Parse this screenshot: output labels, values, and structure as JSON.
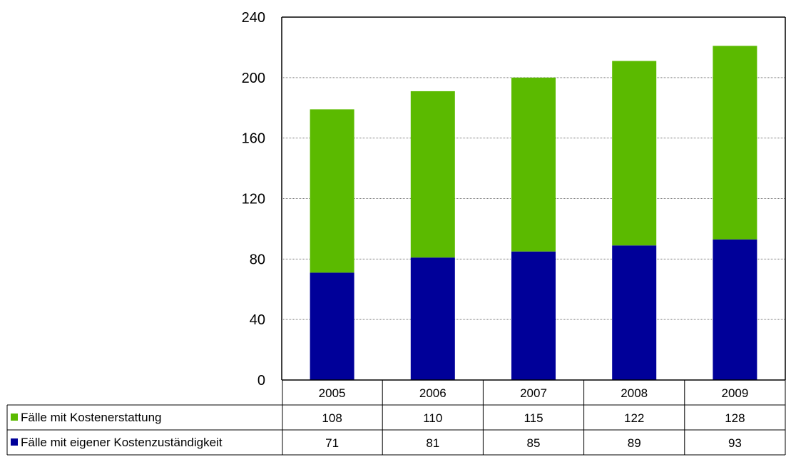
{
  "chart_data": {
    "type": "bar",
    "stacked": true,
    "categories": [
      "2005",
      "2006",
      "2007",
      "2008",
      "2009"
    ],
    "series": [
      {
        "name": "Fälle mit eigener Kostenzuständigkeit",
        "values": [
          71,
          81,
          85,
          89,
          93
        ],
        "color": "#000099"
      },
      {
        "name": "Fälle mit Kostenerstattung",
        "values": [
          108,
          110,
          115,
          122,
          128
        ],
        "color": "#5BBA00"
      }
    ],
    "table_rows": [
      {
        "name": "Fälle mit Kostenerstattung",
        "values": [
          "108",
          "110",
          "115",
          "122",
          "128"
        ],
        "color": "#5BBA00"
      },
      {
        "name": "Fälle mit eigener Kostenzuständigkeit",
        "values": [
          "71",
          "81",
          "85",
          "89",
          "93"
        ],
        "color": "#000099"
      }
    ],
    "y_ticks": [
      "0",
      "40",
      "80",
      "120",
      "160",
      "200",
      "240"
    ],
    "ylim": [
      0,
      240
    ],
    "grid": true,
    "legend": "data-table-left",
    "title": "",
    "xlabel": "",
    "ylabel": ""
  }
}
